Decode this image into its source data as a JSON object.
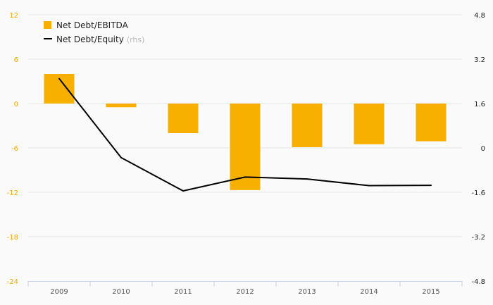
{
  "chart_data": {
    "type": "bar",
    "categories": [
      "2009",
      "2010",
      "2011",
      "2012",
      "2013",
      "2014",
      "2015"
    ],
    "series": [
      {
        "name": "Net Debt/EBITDA",
        "kind": "bar",
        "axis": "left",
        "color": "#f7b000",
        "values": [
          4.0,
          -0.5,
          -4.0,
          -11.7,
          -5.9,
          -5.5,
          -5.1
        ]
      },
      {
        "name": "Net Debt/Equity",
        "axis_note": "(rhs)",
        "kind": "line",
        "axis": "right",
        "color": "#000000",
        "values": [
          2.5,
          -0.35,
          -1.55,
          -1.05,
          -1.12,
          -1.36,
          -1.35
        ]
      }
    ],
    "left_axis": {
      "ticks": [
        "12",
        "6",
        "0",
        "-6",
        "-12",
        "-18",
        "-24"
      ],
      "range": [
        -24,
        12
      ],
      "color": "#f7a800"
    },
    "right_axis": {
      "ticks": [
        "4.8",
        "3.2",
        "1.6",
        "0",
        "-1.6",
        "-3.2",
        "-4.8"
      ],
      "range": [
        -4.8,
        4.8
      ],
      "color": "#222222"
    },
    "grid": true,
    "legend_position": "top-left"
  }
}
